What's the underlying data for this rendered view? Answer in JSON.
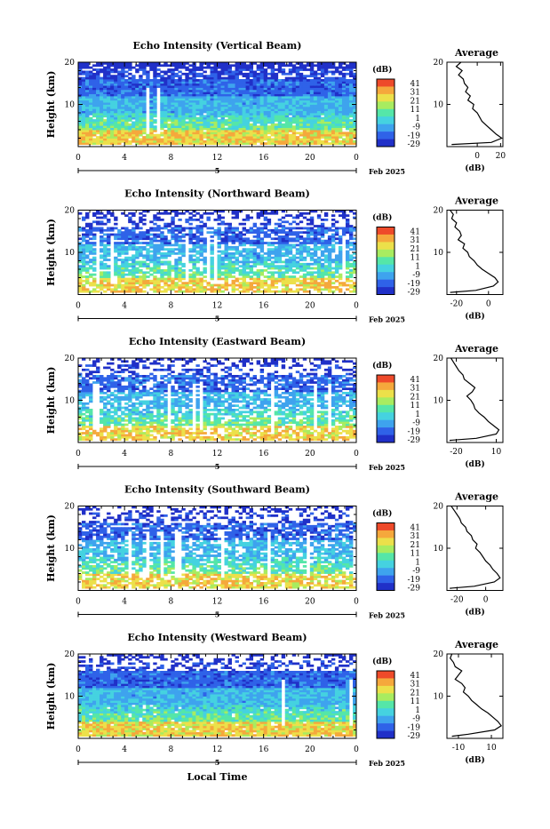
{
  "chart_data": {
    "type": "heatmap",
    "panels": [
      {
        "title": "Echo Intensity (Vertical Beam)",
        "ylabel": "Height (km)",
        "ylim": [
          0,
          20
        ],
        "yticks": [
          "10",
          "20"
        ],
        "xticks": [
          "0",
          "4",
          "8",
          "12",
          "16",
          "20",
          "0"
        ],
        "date_mark": "5",
        "date_label": "Feb 2025",
        "colorbar_unit": "(dB)",
        "colorbar_ticks": [
          "41",
          "31",
          "21",
          "11",
          "1",
          "-9",
          "-19",
          "-29"
        ],
        "avg_title": "Average",
        "avg_xticks": [
          "0",
          "20"
        ],
        "avg_yticks": [
          "10",
          "20"
        ],
        "avg_xlabel": "(dB)",
        "avg_xlim": [
          -26,
          22
        ],
        "avg_profile": [
          [
            20,
            -14
          ],
          [
            19,
            -18
          ],
          [
            18,
            -13
          ],
          [
            17,
            -16
          ],
          [
            16,
            -12
          ],
          [
            15,
            -11
          ],
          [
            14,
            -8
          ],
          [
            13,
            -10
          ],
          [
            12,
            -6
          ],
          [
            11,
            -8
          ],
          [
            10,
            -3
          ],
          [
            9,
            -4
          ],
          [
            8,
            0
          ],
          [
            7,
            2
          ],
          [
            6,
            4
          ],
          [
            5,
            8
          ],
          [
            4,
            12
          ],
          [
            3,
            16
          ],
          [
            2,
            21
          ],
          [
            1,
            12
          ],
          [
            0.5,
            -22
          ]
        ]
      },
      {
        "title": "Echo Intensity (Northward Beam)",
        "ylabel": "Height (km)",
        "ylim": [
          0,
          20
        ],
        "yticks": [
          "10",
          "20"
        ],
        "xticks": [
          "0",
          "4",
          "8",
          "12",
          "16",
          "20",
          "0"
        ],
        "date_mark": "5",
        "date_label": "Feb 2025",
        "colorbar_unit": "(dB)",
        "colorbar_ticks": [
          "41",
          "31",
          "21",
          "11",
          "1",
          "-9",
          "-19",
          "-29"
        ],
        "avg_title": "Average",
        "avg_xticks": [
          "-20",
          "0"
        ],
        "avg_yticks": [
          "10",
          "20"
        ],
        "avg_xlabel": "(dB)",
        "avg_xlim": [
          -26,
          9
        ],
        "avg_profile": [
          [
            20,
            -24
          ],
          [
            19,
            -22
          ],
          [
            18,
            -23
          ],
          [
            17,
            -20
          ],
          [
            16,
            -21
          ],
          [
            15,
            -18
          ],
          [
            14,
            -17
          ],
          [
            13,
            -19
          ],
          [
            12,
            -15
          ],
          [
            11,
            -16
          ],
          [
            10,
            -13
          ],
          [
            9,
            -12
          ],
          [
            8,
            -9
          ],
          [
            7,
            -7
          ],
          [
            6,
            -4
          ],
          [
            5,
            0
          ],
          [
            4,
            4
          ],
          [
            3,
            6
          ],
          [
            2,
            3
          ],
          [
            1,
            -8
          ],
          [
            0.5,
            -24
          ]
        ]
      },
      {
        "title": "Echo Intensity (Eastward Beam)",
        "ylabel": "Height (km)",
        "ylim": [
          0,
          20
        ],
        "yticks": [
          "10",
          "20"
        ],
        "xticks": [
          "0",
          "4",
          "8",
          "12",
          "16",
          "20",
          "0"
        ],
        "date_mark": "5",
        "date_label": "Feb 2025",
        "colorbar_unit": "(dB)",
        "colorbar_ticks": [
          "41",
          "31",
          "21",
          "11",
          "1",
          "-9",
          "-19",
          "-29"
        ],
        "avg_title": "Average",
        "avg_xticks": [
          "-20",
          "10"
        ],
        "avg_yticks": [
          "10",
          "20"
        ],
        "avg_xlabel": "(dB)",
        "avg_xlim": [
          -27,
          15
        ],
        "avg_profile": [
          [
            20,
            -24
          ],
          [
            19,
            -22
          ],
          [
            18,
            -20
          ],
          [
            17,
            -18
          ],
          [
            16,
            -15
          ],
          [
            15,
            -14
          ],
          [
            14,
            -10
          ],
          [
            13,
            -6
          ],
          [
            12,
            -8
          ],
          [
            11,
            -12
          ],
          [
            10,
            -9
          ],
          [
            9,
            -7
          ],
          [
            8,
            -6
          ],
          [
            7,
            -3
          ],
          [
            6,
            1
          ],
          [
            5,
            4
          ],
          [
            4,
            8
          ],
          [
            3,
            12
          ],
          [
            2,
            10
          ],
          [
            1,
            -5
          ],
          [
            0.5,
            -25
          ]
        ]
      },
      {
        "title": "Echo Intensity (Southward Beam)",
        "ylabel": "Height (km)",
        "ylim": [
          0,
          20
        ],
        "yticks": [
          "10",
          "20"
        ],
        "xticks": [
          "0",
          "4",
          "8",
          "12",
          "16",
          "20",
          "0"
        ],
        "date_mark": "5",
        "date_label": "Feb 2025",
        "colorbar_unit": "(dB)",
        "colorbar_ticks": [
          "41",
          "31",
          "21",
          "11",
          "1",
          "-9",
          "-19",
          "-29"
        ],
        "avg_title": "Average",
        "avg_xticks": [
          "-20",
          "0"
        ],
        "avg_yticks": [
          "10",
          "20"
        ],
        "avg_xlabel": "(dB)",
        "avg_xlim": [
          -27,
          12
        ],
        "avg_profile": [
          [
            20,
            -24
          ],
          [
            19,
            -22
          ],
          [
            18,
            -20
          ],
          [
            17,
            -18
          ],
          [
            16,
            -17
          ],
          [
            15,
            -14
          ],
          [
            14,
            -13
          ],
          [
            13,
            -10
          ],
          [
            12,
            -9
          ],
          [
            11,
            -6
          ],
          [
            10,
            -7
          ],
          [
            9,
            -4
          ],
          [
            8,
            -2
          ],
          [
            7,
            0
          ],
          [
            6,
            3
          ],
          [
            5,
            5
          ],
          [
            4,
            8
          ],
          [
            3,
            10
          ],
          [
            2,
            6
          ],
          [
            1,
            -8
          ],
          [
            0.5,
            -25
          ]
        ]
      },
      {
        "title": "Echo Intensity (Westward Beam)",
        "ylabel": "Height (km)",
        "ylim": [
          0,
          20
        ],
        "yticks": [
          "10",
          "20"
        ],
        "xticks": [
          "0",
          "4",
          "8",
          "12",
          "16",
          "20",
          "0"
        ],
        "date_mark": "5",
        "date_label": "Feb 2025",
        "colorbar_unit": "(dB)",
        "colorbar_ticks": [
          "41",
          "31",
          "21",
          "11",
          "1",
          "-9",
          "-19",
          "-29"
        ],
        "avg_title": "Average",
        "avg_xticks": [
          "-10",
          "10"
        ],
        "avg_yticks": [
          "10",
          "20"
        ],
        "avg_xlabel": "(dB)",
        "avg_xlim": [
          -17,
          17
        ],
        "avg_profile": [
          [
            20,
            -14
          ],
          [
            19,
            -15
          ],
          [
            18,
            -13
          ],
          [
            17,
            -12
          ],
          [
            16,
            -8
          ],
          [
            15,
            -10
          ],
          [
            14,
            -12
          ],
          [
            13,
            -8
          ],
          [
            12,
            -6
          ],
          [
            11,
            -7
          ],
          [
            10,
            -4
          ],
          [
            9,
            -2
          ],
          [
            8,
            1
          ],
          [
            7,
            4
          ],
          [
            6,
            8
          ],
          [
            5,
            11
          ],
          [
            4,
            14
          ],
          [
            3,
            16
          ],
          [
            2,
            12
          ],
          [
            1,
            -4
          ],
          [
            0.5,
            -14
          ]
        ]
      }
    ],
    "xlabel": "Local Time",
    "colorscale": [
      "#2030c8",
      "#2f62e8",
      "#3ea3ee",
      "#45d2e0",
      "#55e6a8",
      "#a8ec60",
      "#ece04a",
      "#f5a83c",
      "#ee4a2a"
    ]
  }
}
